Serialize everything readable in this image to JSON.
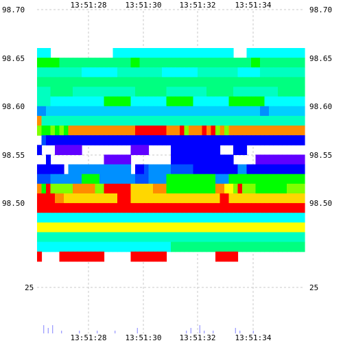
{
  "chart_data": {
    "type": "heatmap",
    "title": "",
    "xlabel": "",
    "ylabel": "",
    "x_ticks": [
      "13:51:28",
      "13:51:30",
      "13:51:32",
      "13:51:34"
    ],
    "y_ticks": [
      "98.70",
      "98.65",
      "98.60",
      "98.55",
      "98.50"
    ],
    "ylim": [
      98.44,
      98.7
    ],
    "volume_tick": "25",
    "grid": true,
    "price_levels": [
      98.65,
      98.64,
      98.63,
      98.62,
      98.61,
      98.6,
      98.59,
      98.58,
      98.57,
      98.56,
      98.55,
      98.54,
      98.53,
      98.52,
      98.51,
      98.5,
      98.49,
      98.48,
      98.47,
      98.46,
      98.45,
      98.44
    ],
    "color_scale": [
      "#ff0000",
      "#ff8c00",
      "#ffd700",
      "#ffff00",
      "#80ff00",
      "#00ff00",
      "#00ff80",
      "#00ffc0",
      "#00ffff",
      "#00d0ff",
      "#0090ff",
      "#0050ff",
      "#0000ff",
      "#6000ff",
      "#ffffff"
    ],
    "rows": [
      [
        "8",
        "8",
        "8",
        "14",
        "14",
        "14",
        "14",
        "14",
        "14",
        "14",
        "14",
        "14",
        "14",
        "14",
        "14",
        "14",
        "14",
        "8",
        "8",
        "8",
        "8",
        "8",
        "8",
        "8",
        "8",
        "8",
        "8",
        "8",
        "8",
        "8",
        "8",
        "8",
        "8",
        "8",
        "8",
        "8",
        "8",
        "8",
        "8",
        "8",
        "8",
        "8",
        "8",
        "8",
        "14",
        "14",
        "14",
        "8",
        "8",
        "8",
        "8",
        "8",
        "8",
        "8",
        "8",
        "8",
        "8",
        "8",
        "8",
        "8"
      ],
      [
        "5",
        "5",
        "5",
        "5",
        "5",
        "6",
        "6",
        "6",
        "6",
        "6",
        "6",
        "6",
        "6",
        "6",
        "6",
        "6",
        "6",
        "6",
        "6",
        "6",
        "6",
        "5",
        "5",
        "6",
        "6",
        "6",
        "6",
        "6",
        "6",
        "6",
        "6",
        "6",
        "6",
        "6",
        "6",
        "6",
        "6",
        "6",
        "6",
        "6",
        "6",
        "6",
        "6",
        "6",
        "6",
        "6",
        "6",
        "6",
        "5",
        "5",
        "6",
        "6",
        "6",
        "6",
        "6",
        "6",
        "6",
        "6",
        "6",
        "6"
      ],
      [
        "7",
        "7",
        "7",
        "7",
        "7",
        "7",
        "7",
        "7",
        "7",
        "7",
        "8",
        "8",
        "8",
        "8",
        "8",
        "8",
        "8",
        "8",
        "7",
        "7",
        "7",
        "7",
        "7",
        "7",
        "7",
        "7",
        "7",
        "7",
        "8",
        "8",
        "8",
        "8",
        "8",
        "8",
        "8",
        "8",
        "7",
        "7",
        "7",
        "7",
        "7",
        "7",
        "7",
        "7",
        "7",
        "8",
        "8",
        "8",
        "8",
        "8",
        "7",
        "7",
        "7",
        "7",
        "7",
        "7",
        "7",
        "7",
        "7",
        "7"
      ],
      [
        "6",
        "6",
        "6",
        "6",
        "6",
        "6",
        "6",
        "6",
        "6",
        "6",
        "6",
        "6",
        "6",
        "6",
        "6",
        "6",
        "6",
        "6",
        "6",
        "6",
        "6",
        "6",
        "6",
        "6",
        "6",
        "6",
        "6",
        "6",
        "6",
        "6",
        "6",
        "6",
        "6",
        "6",
        "6",
        "6",
        "6",
        "6",
        "6",
        "6",
        "6",
        "6",
        "6",
        "6",
        "6",
        "6",
        "6",
        "6",
        "6",
        "6",
        "6",
        "6",
        "6",
        "6",
        "6",
        "6",
        "6",
        "6",
        "6",
        "6"
      ],
      [
        "7",
        "7",
        "7",
        "6",
        "6",
        "6",
        "6",
        "6",
        "7",
        "7",
        "7",
        "7",
        "7",
        "7",
        "7",
        "7",
        "7",
        "7",
        "7",
        "7",
        "7",
        "7",
        "6",
        "6",
        "6",
        "6",
        "6",
        "6",
        "6",
        "7",
        "7",
        "7",
        "7",
        "7",
        "7",
        "7",
        "7",
        "7",
        "6",
        "6",
        "6",
        "6",
        "6",
        "6",
        "7",
        "7",
        "7",
        "7",
        "7",
        "7",
        "7",
        "7",
        "7",
        "7",
        "6",
        "6",
        "6",
        "6",
        "6",
        "6"
      ],
      [
        "7",
        "7",
        "7",
        "8",
        "8",
        "8",
        "8",
        "8",
        "8",
        "8",
        "8",
        "8",
        "8",
        "8",
        "8",
        "5",
        "5",
        "5",
        "5",
        "5",
        "5",
        "8",
        "8",
        "8",
        "8",
        "8",
        "8",
        "8",
        "8",
        "5",
        "5",
        "5",
        "5",
        "5",
        "5",
        "8",
        "8",
        "8",
        "8",
        "8",
        "8",
        "8",
        "8",
        "5",
        "5",
        "5",
        "5",
        "5",
        "5",
        "5",
        "5",
        "8",
        "8",
        "8",
        "8",
        "8",
        "8",
        "8",
        "8",
        "8"
      ],
      [
        "10",
        "10",
        "9",
        "9",
        "9",
        "9",
        "9",
        "9",
        "9",
        "9",
        "9",
        "9",
        "9",
        "9",
        "9",
        "9",
        "9",
        "9",
        "9",
        "9",
        "9",
        "9",
        "9",
        "9",
        "9",
        "9",
        "9",
        "9",
        "9",
        "9",
        "9",
        "9",
        "9",
        "9",
        "9",
        "9",
        "9",
        "9",
        "9",
        "9",
        "9",
        "9",
        "9",
        "9",
        "9",
        "9",
        "9",
        "9",
        "9",
        "9",
        "10",
        "10",
        "9",
        "9",
        "9",
        "9",
        "9",
        "9",
        "9",
        "9"
      ],
      [
        "1",
        "7",
        "7",
        "7",
        "7",
        "7",
        "7",
        "7",
        "7",
        "7",
        "7",
        "7",
        "7",
        "7",
        "7",
        "7",
        "7",
        "7",
        "7",
        "7",
        "7",
        "7",
        "7",
        "7",
        "7",
        "7",
        "7",
        "7",
        "7",
        "7",
        "7",
        "7",
        "7",
        "7",
        "7",
        "7",
        "7",
        "7",
        "7",
        "7",
        "7",
        "7",
        "7",
        "7",
        "7",
        "7",
        "7",
        "7",
        "7",
        "7",
        "7",
        "7",
        "7",
        "7",
        "7",
        "7",
        "7",
        "7",
        "7",
        "7"
      ],
      [
        "4",
        "5",
        "5",
        "4",
        "5",
        "4",
        "5",
        "1",
        "1",
        "1",
        "1",
        "1",
        "1",
        "1",
        "1",
        "1",
        "1",
        "1",
        "1",
        "1",
        "1",
        "1",
        "0",
        "0",
        "0",
        "0",
        "0",
        "0",
        "0",
        "1",
        "1",
        "1",
        "0",
        "4",
        "1",
        "1",
        "1",
        "0",
        "1",
        "0",
        "4",
        "1",
        "4",
        "1",
        "1",
        "1",
        "1",
        "1",
        "1",
        "1",
        "1",
        "1",
        "1",
        "1",
        "1",
        "1",
        "1",
        "1",
        "1",
        "1"
      ],
      [
        "14",
        "11",
        "12",
        "12",
        "12",
        "12",
        "12",
        "12",
        "12",
        "12",
        "12",
        "12",
        "12",
        "12",
        "12",
        "12",
        "12",
        "12",
        "12",
        "12",
        "12",
        "12",
        "12",
        "12",
        "12",
        "12",
        "12",
        "12",
        "12",
        "12",
        "12",
        "12",
        "12",
        "12",
        "12",
        "12",
        "12",
        "12",
        "12",
        "12",
        "12",
        "12",
        "12",
        "12",
        "12",
        "12",
        "12",
        "12",
        "12",
        "12",
        "12",
        "12",
        "12",
        "12",
        "12",
        "12",
        "12",
        "12",
        "12",
        "12"
      ],
      [
        "12",
        "14",
        "14",
        "14",
        "13",
        "13",
        "13",
        "13",
        "13",
        "13",
        "14",
        "14",
        "14",
        "14",
        "14",
        "14",
        "14",
        "14",
        "14",
        "14",
        "14",
        "13",
        "13",
        "13",
        "13",
        "14",
        "14",
        "14",
        "14",
        "14",
        "12",
        "12",
        "12",
        "12",
        "12",
        "12",
        "12",
        "12",
        "12",
        "12",
        "12",
        "14",
        "14",
        "14",
        "12",
        "12",
        "12",
        "14",
        "14",
        "14",
        "14",
        "14",
        "14",
        "14",
        "14",
        "14",
        "14",
        "14",
        "14",
        "14"
      ],
      [
        "14",
        "14",
        "12",
        "14",
        "14",
        "14",
        "14",
        "14",
        "14",
        "14",
        "14",
        "14",
        "14",
        "14",
        "14",
        "13",
        "13",
        "13",
        "13",
        "13",
        "13",
        "14",
        "14",
        "14",
        "14",
        "14",
        "14",
        "14",
        "14",
        "14",
        "12",
        "12",
        "12",
        "12",
        "12",
        "12",
        "12",
        "12",
        "12",
        "12",
        "12",
        "12",
        "12",
        "12",
        "14",
        "14",
        "14",
        "14",
        "14",
        "13",
        "13",
        "13",
        "13",
        "13",
        "13",
        "13",
        "13",
        "13",
        "13",
        "13"
      ],
      [
        "12",
        "12",
        "12",
        "12",
        "12",
        "12",
        "14",
        "10",
        "10",
        "10",
        "10",
        "10",
        "10",
        "10",
        "10",
        "10",
        "10",
        "10",
        "10",
        "10",
        "10",
        "14",
        "12",
        "12",
        "11",
        "10",
        "10",
        "10",
        "10",
        "10",
        "11",
        "11",
        "11",
        "11",
        "11",
        "12",
        "12",
        "12",
        "12",
        "12",
        "12",
        "12",
        "12",
        "12",
        "12",
        "10",
        "10",
        "12",
        "12",
        "12",
        "12",
        "12",
        "12",
        "12",
        "12",
        "12",
        "12",
        "12",
        "12",
        "12"
      ],
      [
        "11",
        "11",
        "11",
        "10",
        "10",
        "10",
        "10",
        "10",
        "10",
        "10",
        "5",
        "5",
        "5",
        "5",
        "10",
        "10",
        "10",
        "10",
        "10",
        "10",
        "10",
        "10",
        "11",
        "11",
        "11",
        "10",
        "10",
        "10",
        "10",
        "5",
        "5",
        "5",
        "5",
        "5",
        "5",
        "5",
        "5",
        "5",
        "5",
        "5",
        "10",
        "10",
        "10",
        "5",
        "5",
        "5",
        "5",
        "5",
        "5",
        "5",
        "5",
        "5",
        "5",
        "5",
        "5",
        "5",
        "5",
        "5",
        "5",
        "5"
      ],
      [
        "1",
        "5",
        "0",
        "4",
        "4",
        "4",
        "4",
        "4",
        "1",
        "1",
        "1",
        "1",
        "1",
        "4",
        "4",
        "0",
        "0",
        "0",
        "0",
        "0",
        "0",
        "2",
        "2",
        "2",
        "2",
        "2",
        "1",
        "1",
        "1",
        "5",
        "5",
        "5",
        "5",
        "5",
        "5",
        "5",
        "5",
        "5",
        "5",
        "5",
        "1",
        "1",
        "3",
        "3",
        "4",
        "0",
        "4",
        "4",
        "4",
        "5",
        "5",
        "5",
        "5",
        "5",
        "5",
        "5",
        "4",
        "4",
        "4",
        "4"
      ],
      [
        "0",
        "0",
        "0",
        "0",
        "1",
        "1",
        "2",
        "2",
        "2",
        "2",
        "2",
        "2",
        "2",
        "2",
        "2",
        "2",
        "2",
        "2",
        "0",
        "0",
        "0",
        "2",
        "2",
        "2",
        "2",
        "2",
        "2",
        "2",
        "2",
        "2",
        "2",
        "2",
        "2",
        "2",
        "2",
        "2",
        "2",
        "2",
        "2",
        "2",
        "2",
        "0",
        "0",
        "2",
        "2",
        "2",
        "2",
        "2",
        "2",
        "2",
        "2",
        "2",
        "2",
        "2",
        "2",
        "2",
        "2",
        "2",
        "2",
        "2"
      ],
      [
        "0",
        "0",
        "0",
        "0",
        "0",
        "0",
        "0",
        "0",
        "0",
        "0",
        "0",
        "0",
        "0",
        "0",
        "0",
        "0",
        "0",
        "0",
        "0",
        "0",
        "0",
        "0",
        "0",
        "0",
        "0",
        "0",
        "0",
        "0",
        "0",
        "0",
        "0",
        "0",
        "0",
        "0",
        "0",
        "0",
        "0",
        "0",
        "0",
        "0",
        "0",
        "0",
        "0",
        "0",
        "0",
        "0",
        "0",
        "0",
        "0",
        "0",
        "0",
        "0",
        "0",
        "0",
        "0",
        "0",
        "0",
        "0",
        "0",
        "0"
      ],
      [
        "8",
        "8",
        "8",
        "8",
        "8",
        "8",
        "8",
        "8",
        "8",
        "8",
        "8",
        "8",
        "8",
        "8",
        "8",
        "8",
        "8",
        "8",
        "8",
        "8",
        "8",
        "8",
        "8",
        "8",
        "8",
        "8",
        "8",
        "8",
        "8",
        "8",
        "8",
        "8",
        "8",
        "8",
        "8",
        "8",
        "8",
        "8",
        "8",
        "8",
        "8",
        "8",
        "8",
        "8",
        "8",
        "8",
        "8",
        "8",
        "8",
        "8",
        "8",
        "8",
        "8",
        "8",
        "8",
        "8",
        "8",
        "8",
        "8",
        "8"
      ],
      [
        "3",
        "3",
        "3",
        "3",
        "3",
        "3",
        "3",
        "3",
        "3",
        "3",
        "3",
        "3",
        "3",
        "3",
        "3",
        "3",
        "3",
        "3",
        "3",
        "3",
        "3",
        "3",
        "3",
        "3",
        "3",
        "3",
        "3",
        "3",
        "3",
        "3",
        "3",
        "3",
        "3",
        "3",
        "3",
        "3",
        "3",
        "3",
        "3",
        "3",
        "3",
        "3",
        "3",
        "3",
        "3",
        "3",
        "3",
        "3",
        "3",
        "3",
        "3",
        "3",
        "3",
        "3",
        "3",
        "3",
        "3",
        "3",
        "3",
        "3"
      ],
      [
        "7",
        "7",
        "7",
        "7",
        "7",
        "7",
        "7",
        "7",
        "7",
        "7",
        "7",
        "7",
        "7",
        "7",
        "7",
        "7",
        "7",
        "7",
        "7",
        "7",
        "7",
        "7",
        "7",
        "7",
        "7",
        "7",
        "7",
        "7",
        "7",
        "7",
        "7",
        "7",
        "7",
        "7",
        "7",
        "7",
        "7",
        "7",
        "7",
        "7",
        "7",
        "7",
        "7",
        "7",
        "7",
        "7",
        "7",
        "7",
        "7",
        "7",
        "7",
        "7",
        "7",
        "7",
        "7",
        "7",
        "7",
        "7",
        "7",
        "7"
      ],
      [
        "8",
        "8",
        "8",
        "8",
        "8",
        "8",
        "8",
        "8",
        "8",
        "8",
        "8",
        "8",
        "8",
        "8",
        "8",
        "8",
        "8",
        "8",
        "8",
        "8",
        "8",
        "8",
        "8",
        "8",
        "8",
        "8",
        "8",
        "8",
        "8",
        "8",
        "6",
        "6",
        "6",
        "6",
        "6",
        "6",
        "6",
        "6",
        "6",
        "6",
        "6",
        "6",
        "6",
        "6",
        "6",
        "6",
        "6",
        "6",
        "6",
        "6",
        "6",
        "6",
        "6",
        "6",
        "6",
        "6",
        "6",
        "6",
        "6",
        "6"
      ],
      [
        "0",
        "14",
        "14",
        "14",
        "14",
        "0",
        "0",
        "0",
        "0",
        "0",
        "0",
        "0",
        "0",
        "0",
        "0",
        "14",
        "14",
        "14",
        "14",
        "14",
        "14",
        "0",
        "0",
        "0",
        "0",
        "0",
        "0",
        "0",
        "0",
        "14",
        "14",
        "14",
        "14",
        "14",
        "14",
        "14",
        "14",
        "14",
        "14",
        "14",
        "0",
        "0",
        "0",
        "0",
        "0",
        "14",
        "14",
        "14",
        "14",
        "14",
        "14",
        "14",
        "14",
        "14",
        "14",
        "14",
        "14",
        "14",
        "14",
        "14"
      ]
    ],
    "volume_bars": [
      0,
      0.3,
      0.2,
      0.3,
      0,
      0.1,
      0,
      0,
      0,
      0.1,
      0,
      0,
      0,
      0.1,
      0,
      0,
      0,
      0.1,
      0,
      0,
      0,
      0,
      0.2,
      0,
      0,
      0,
      0,
      0,
      0,
      0,
      0,
      0,
      0,
      0.1,
      0.2,
      0,
      0.3,
      0.1,
      0,
      0.1,
      0,
      0,
      0,
      0,
      0.2,
      0.1,
      0,
      0,
      0.1,
      0,
      0,
      0,
      0,
      0,
      0,
      0,
      0,
      0,
      0,
      0
    ]
  }
}
